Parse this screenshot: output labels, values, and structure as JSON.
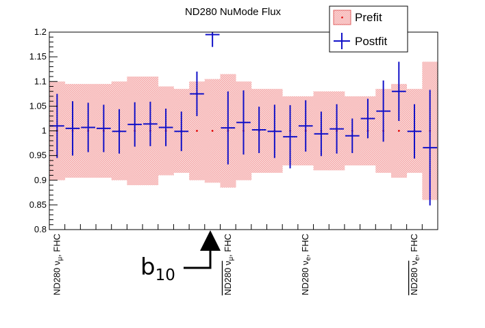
{
  "chart_data": {
    "type": "scatter",
    "title": "ND280 NuMode Flux",
    "ylim": [
      0.8,
      1.2
    ],
    "xlim": [
      0,
      25
    ],
    "yticks": [
      {
        "v": 0.8,
        "label": "0.8"
      },
      {
        "v": 0.85,
        "label": "0.85"
      },
      {
        "v": 0.9,
        "label": "0.9"
      },
      {
        "v": 0.95,
        "label": "0.95"
      },
      {
        "v": 1.0,
        "label": "1"
      },
      {
        "v": 1.05,
        "label": "1.05"
      },
      {
        "v": 1.1,
        "label": "1.1"
      },
      {
        "v": 1.15,
        "label": "1.15"
      },
      {
        "v": 1.2,
        "label": "1.2"
      }
    ],
    "category_labels": [
      {
        "pos": 0,
        "text": "ND280 ν",
        "sub": "μ",
        "tail": ", FHC",
        "bar": false
      },
      {
        "pos": 11,
        "text": "ND280 ν",
        "sub": "μ",
        "tail": ", FHC",
        "bar": true
      },
      {
        "pos": 16,
        "text": "ND280 ν",
        "sub": "e",
        "tail": ", FHC",
        "bar": false
      },
      {
        "pos": 23,
        "text": "ND280 ν",
        "sub": "e",
        "tail": ", FHC",
        "bar": true
      }
    ],
    "legend": {
      "placement": "top-right",
      "entries": [
        {
          "name": "Prefit",
          "color": "#f28b8b"
        },
        {
          "name": "Postfit",
          "color": "#1010c8"
        }
      ]
    },
    "prefit": {
      "name": "Prefit",
      "central": 1.0,
      "uncertainty": [
        0.1,
        0.095,
        0.095,
        0.095,
        0.1,
        0.11,
        0.11,
        0.09,
        0.085,
        0.1,
        0.105,
        0.115,
        0.1,
        0.085,
        0.085,
        0.07,
        0.07,
        0.08,
        0.08,
        0.07,
        0.07,
        0.085,
        0.095,
        0.085,
        0.14
      ]
    },
    "postfit": {
      "name": "Postfit",
      "values": [
        1.01,
        1.005,
        1.007,
        1.005,
        0.999,
        1.013,
        1.014,
        1.007,
        0.999,
        1.075,
        1.195,
        1.006,
        1.017,
        1.002,
        0.999,
        0.988,
        1.01,
        0.994,
        1.004,
        0.99,
        1.025,
        1.04,
        1.08,
        0.999,
        0.966
      ],
      "errors": [
        0.065,
        0.055,
        0.05,
        0.048,
        0.045,
        0.045,
        0.045,
        0.038,
        0.04,
        0.045,
        0.025,
        0.074,
        0.065,
        0.047,
        0.054,
        0.064,
        0.052,
        0.045,
        0.05,
        0.035,
        0.04,
        0.062,
        0.06,
        0.055,
        0.117
      ]
    },
    "annotation": {
      "text": "b",
      "sub": "10",
      "target_bin": 10
    }
  }
}
